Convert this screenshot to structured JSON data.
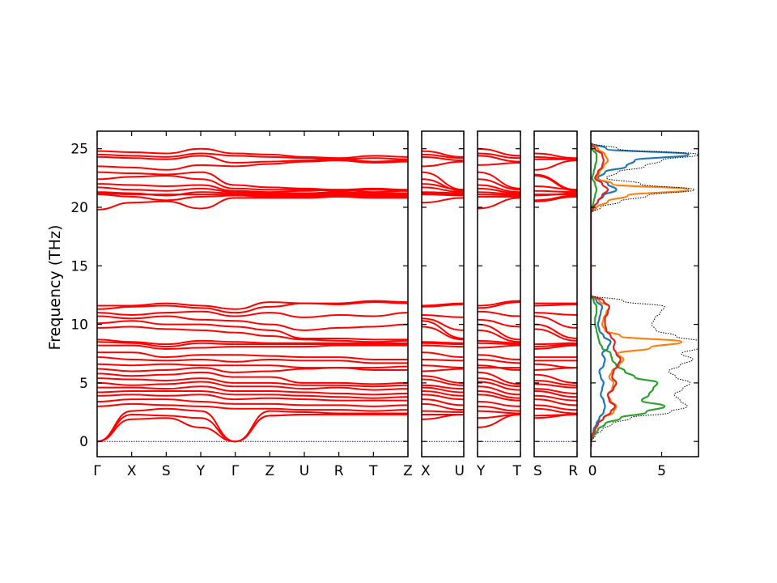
{
  "chart_data": {
    "type": "line",
    "ylabel": "Frequency (THz)",
    "ylim": [
      -1.3,
      26.5
    ],
    "yticks": [
      0,
      5,
      10,
      15,
      20,
      25
    ],
    "line_color": "#ff0000",
    "zero_line_color": "#0000cc",
    "panels": [
      {
        "labels": [
          "Γ",
          "X",
          "S",
          "Y",
          "Γ",
          "Z",
          "U",
          "R",
          "T",
          "Z"
        ],
        "splits": [
          4
        ],
        "bands": [
          [
            24.8,
            24.7,
            24.6,
            25.0,
            24.6,
            24.5,
            24.3,
            24.2,
            24.4,
            24.3
          ],
          [
            24.5,
            24.4,
            24.3,
            24.6,
            24.4,
            24.3,
            24.2,
            24.1,
            24.2,
            24.1
          ],
          [
            24.3,
            24.2,
            24.1,
            24.4,
            23.8,
            23.9,
            24.0,
            24.1,
            23.9,
            24.0
          ],
          [
            23.5,
            23.4,
            23.2,
            23.6,
            23.5,
            23.7,
            23.9,
            24.0,
            23.8,
            23.9
          ],
          [
            23.0,
            22.9,
            22.8,
            23.0,
            21.9,
            21.7,
            21.6,
            21.5,
            21.6,
            21.5
          ],
          [
            22.4,
            22.6,
            22.7,
            22.4,
            21.6,
            21.5,
            21.5,
            21.4,
            21.5,
            21.4
          ],
          [
            22.0,
            21.9,
            21.8,
            21.9,
            21.4,
            21.3,
            21.4,
            21.5,
            21.3,
            21.4
          ],
          [
            21.7,
            21.5,
            21.4,
            21.6,
            21.3,
            21.2,
            21.2,
            21.3,
            21.2,
            21.2
          ],
          [
            21.3,
            21.2,
            21.0,
            21.3,
            21.2,
            21.1,
            21.1,
            21.2,
            21.1,
            21.1
          ],
          [
            21.2,
            21.1,
            21.1,
            21.1,
            21.1,
            21.0,
            21.0,
            21.1,
            21.0,
            21.0
          ],
          [
            21.1,
            20.9,
            20.6,
            20.9,
            21.0,
            20.9,
            20.9,
            21.0,
            20.9,
            20.9
          ],
          [
            19.8,
            20.4,
            20.5,
            19.9,
            20.8,
            20.8,
            20.8,
            20.9,
            20.8,
            20.8
          ],
          [
            11.6,
            11.6,
            11.8,
            11.6,
            11.3,
            11.9,
            11.8,
            11.8,
            12.0,
            11.9
          ],
          [
            11.3,
            11.5,
            11.6,
            11.4,
            11.0,
            11.5,
            11.8,
            11.7,
            11.9,
            11.8
          ],
          [
            11.0,
            10.8,
            11.0,
            11.1,
            10.7,
            11.0,
            10.6,
            10.8,
            10.7,
            11.0
          ],
          [
            10.7,
            10.5,
            10.7,
            10.4,
            10.3,
            10.0,
            9.5,
            9.7,
            9.8,
            10.0
          ],
          [
            10.1,
            10.3,
            10.0,
            10.0,
            9.8,
            9.5,
            8.8,
            8.8,
            8.7,
            8.7
          ],
          [
            9.7,
            9.8,
            9.6,
            9.5,
            9.3,
            9.0,
            8.7,
            8.6,
            8.5,
            8.6
          ],
          [
            8.7,
            8.5,
            8.3,
            8.6,
            8.5,
            8.4,
            8.4,
            8.4,
            8.4,
            8.4
          ],
          [
            8.5,
            8.4,
            8.1,
            8.4,
            8.3,
            8.3,
            8.3,
            8.3,
            8.3,
            8.3
          ],
          [
            8.2,
            8.2,
            7.9,
            8.0,
            8.1,
            8.1,
            8.1,
            8.2,
            8.2,
            8.2
          ],
          [
            7.6,
            7.6,
            7.2,
            7.4,
            7.4,
            7.3,
            7.2,
            7.2,
            7.0,
            7.0
          ],
          [
            7.2,
            7.0,
            6.9,
            7.0,
            6.8,
            7.0,
            6.9,
            6.9,
            6.7,
            6.7
          ],
          [
            6.6,
            6.5,
            6.6,
            6.5,
            6.5,
            6.5,
            6.3,
            6.3,
            6.1,
            6.1
          ],
          [
            6.2,
            6.0,
            6.1,
            6.3,
            5.9,
            6.0,
            6.2,
            6.3,
            6.3,
            6.4
          ],
          [
            5.8,
            5.6,
            5.7,
            5.9,
            5.5,
            5.5,
            5.0,
            5.0,
            4.9,
            5.0
          ],
          [
            5.4,
            5.3,
            5.2,
            5.4,
            5.0,
            5.0,
            4.8,
            4.8,
            4.7,
            4.8
          ],
          [
            5.0,
            4.8,
            4.9,
            5.1,
            4.7,
            4.7,
            4.5,
            4.6,
            4.4,
            4.5
          ],
          [
            4.6,
            4.6,
            4.5,
            4.7,
            4.3,
            4.3,
            4.2,
            4.1,
            4.0,
            4.1
          ],
          [
            4.2,
            4.3,
            4.3,
            4.3,
            4.0,
            4.0,
            3.9,
            3.8,
            3.7,
            3.8
          ],
          [
            3.9,
            4.0,
            3.9,
            4.0,
            3.6,
            3.7,
            3.6,
            3.5,
            3.5,
            3.5
          ],
          [
            3.4,
            3.6,
            3.6,
            3.4,
            3.2,
            3.2,
            3.1,
            3.1,
            3.0,
            3.1
          ],
          [
            3.0,
            3.2,
            3.1,
            3.0,
            2.8,
            2.8,
            2.7,
            2.7,
            2.6,
            2.7
          ],
          [
            0.0,
            2.6,
            2.8,
            2.6,
            0.0,
            2.6,
            2.5,
            2.4,
            2.4,
            2.4
          ],
          [
            0.0,
            2.3,
            2.2,
            2.0,
            0.0,
            2.2,
            2.3,
            2.3,
            2.3,
            2.3
          ],
          [
            0.0,
            1.9,
            2.0,
            1.2,
            0.0,
            2.2,
            2.3,
            2.3,
            2.3,
            2.3
          ]
        ]
      },
      {
        "labels": [
          "X",
          "U"
        ],
        "splits": [],
        "bands": [
          [
            24.8,
            24.3
          ],
          [
            24.5,
            24.2
          ],
          [
            24.3,
            24.0
          ],
          [
            23.5,
            23.9
          ],
          [
            23.0,
            21.5
          ],
          [
            22.4,
            21.4
          ],
          [
            22.0,
            21.5
          ],
          [
            21.7,
            21.3
          ],
          [
            21.3,
            21.2
          ],
          [
            21.2,
            21.1
          ],
          [
            21.1,
            21.0
          ],
          [
            20.4,
            20.8
          ],
          [
            11.6,
            11.8
          ],
          [
            11.5,
            11.7
          ],
          [
            10.8,
            10.6
          ],
          [
            10.5,
            9.5
          ],
          [
            10.3,
            8.8
          ],
          [
            9.8,
            8.7
          ],
          [
            8.5,
            8.4
          ],
          [
            8.4,
            8.3
          ],
          [
            8.2,
            8.1
          ],
          [
            7.6,
            7.2
          ],
          [
            7.0,
            6.9
          ],
          [
            6.5,
            6.3
          ],
          [
            6.0,
            6.2
          ],
          [
            5.6,
            5.0
          ],
          [
            5.3,
            4.8
          ],
          [
            4.8,
            4.5
          ],
          [
            4.6,
            4.2
          ],
          [
            4.3,
            3.9
          ],
          [
            4.0,
            3.6
          ],
          [
            3.6,
            3.1
          ],
          [
            3.2,
            2.7
          ],
          [
            2.6,
            2.5
          ],
          [
            2.3,
            2.3
          ],
          [
            1.9,
            2.3
          ]
        ]
      },
      {
        "labels": [
          "Y",
          "T"
        ],
        "splits": [],
        "bands": [
          [
            25.0,
            24.4
          ],
          [
            24.6,
            24.2
          ],
          [
            24.4,
            23.9
          ],
          [
            23.6,
            23.8
          ],
          [
            23.0,
            21.6
          ],
          [
            22.4,
            21.5
          ],
          [
            21.9,
            21.3
          ],
          [
            21.6,
            21.2
          ],
          [
            21.3,
            21.1
          ],
          [
            21.1,
            21.0
          ],
          [
            20.9,
            20.9
          ],
          [
            19.9,
            20.8
          ],
          [
            11.6,
            12.0
          ],
          [
            11.4,
            11.9
          ],
          [
            11.1,
            10.7
          ],
          [
            10.4,
            9.8
          ],
          [
            10.0,
            8.7
          ],
          [
            9.5,
            8.5
          ],
          [
            8.6,
            8.4
          ],
          [
            8.4,
            8.3
          ],
          [
            8.0,
            8.2
          ],
          [
            7.4,
            7.0
          ],
          [
            7.0,
            6.7
          ],
          [
            6.5,
            6.1
          ],
          [
            6.3,
            6.3
          ],
          [
            5.9,
            4.9
          ],
          [
            5.4,
            4.7
          ],
          [
            5.1,
            4.4
          ],
          [
            4.7,
            4.0
          ],
          [
            4.3,
            3.7
          ],
          [
            4.0,
            3.5
          ],
          [
            3.4,
            3.0
          ],
          [
            3.0,
            2.6
          ],
          [
            2.6,
            2.4
          ],
          [
            2.0,
            2.3
          ],
          [
            1.2,
            2.3
          ]
        ]
      },
      {
        "labels": [
          "S",
          "R"
        ],
        "splits": [],
        "bands": [
          [
            24.6,
            24.2
          ],
          [
            24.3,
            24.1
          ],
          [
            24.1,
            24.1
          ],
          [
            23.2,
            24.0
          ],
          [
            22.8,
            21.5
          ],
          [
            22.7,
            21.4
          ],
          [
            21.8,
            21.5
          ],
          [
            21.4,
            21.3
          ],
          [
            21.0,
            21.2
          ],
          [
            21.1,
            21.1
          ],
          [
            20.6,
            21.0
          ],
          [
            20.5,
            20.9
          ],
          [
            11.8,
            11.8
          ],
          [
            11.6,
            11.7
          ],
          [
            11.0,
            10.8
          ],
          [
            10.7,
            9.7
          ],
          [
            10.0,
            8.8
          ],
          [
            9.6,
            8.6
          ],
          [
            8.3,
            8.4
          ],
          [
            8.1,
            8.3
          ],
          [
            7.9,
            8.2
          ],
          [
            7.2,
            7.2
          ],
          [
            6.9,
            6.9
          ],
          [
            6.6,
            6.3
          ],
          [
            6.1,
            6.3
          ],
          [
            5.7,
            5.0
          ],
          [
            5.2,
            4.8
          ],
          [
            4.9,
            4.6
          ],
          [
            4.5,
            4.1
          ],
          [
            4.3,
            3.8
          ],
          [
            3.9,
            3.5
          ],
          [
            3.6,
            3.1
          ],
          [
            3.1,
            2.7
          ],
          [
            2.8,
            2.4
          ],
          [
            2.2,
            2.3
          ],
          [
            2.0,
            2.3
          ]
        ]
      }
    ],
    "dos": {
      "xlim": [
        0,
        7.6
      ],
      "xticks": [
        0,
        5
      ],
      "freq": [
        -0.5,
        0.0,
        0.5,
        1.0,
        1.5,
        2.0,
        2.5,
        3.0,
        3.5,
        4.0,
        4.5,
        5.0,
        5.5,
        6.0,
        6.5,
        7.0,
        7.5,
        8.0,
        8.5,
        9.0,
        9.5,
        10.0,
        10.5,
        11.0,
        11.5,
        12.0,
        12.5,
        13.0,
        19.0,
        19.5,
        20.0,
        20.5,
        21.0,
        21.5,
        22.0,
        22.5,
        23.0,
        23.5,
        24.0,
        24.5,
        25.0,
        25.5
      ],
      "total": [
        0.0,
        0.0,
        0.3,
        0.8,
        1.5,
        2.8,
        5.6,
        6.8,
        6.3,
        5.9,
        6.5,
        7.0,
        6.0,
        5.5,
        6.3,
        7.2,
        6.4,
        7.6,
        7.8,
        6.0,
        4.6,
        4.3,
        4.5,
        4.9,
        5.2,
        2.3,
        0.0,
        0.0,
        0.0,
        0.0,
        0.7,
        2.1,
        4.0,
        7.3,
        3.5,
        1.1,
        1.9,
        3.8,
        5.0,
        7.6,
        1.9,
        0.0
      ],
      "series": [
        {
          "name": "",
          "color": "#1f77b4",
          "values": [
            0.0,
            0.0,
            0.1,
            0.2,
            0.4,
            0.6,
            0.9,
            1.0,
            0.9,
            0.7,
            0.8,
            0.9,
            0.7,
            0.6,
            0.9,
            1.0,
            0.8,
            1.2,
            1.4,
            0.9,
            0.6,
            0.5,
            0.6,
            0.7,
            0.8,
            0.4,
            0.0,
            0.0,
            0.0,
            0.0,
            0.2,
            0.5,
            0.9,
            1.8,
            1.2,
            0.5,
            1.0,
            2.5,
            3.1,
            6.9,
            1.1,
            0.0
          ]
        },
        {
          "name": "",
          "color": "#ff7f0e",
          "values": [
            0.0,
            0.0,
            0.1,
            0.3,
            0.5,
            0.9,
            1.6,
            1.8,
            1.4,
            1.2,
            1.5,
            1.6,
            1.3,
            1.5,
            2.0,
            2.3,
            1.9,
            4.2,
            6.4,
            2.1,
            1.0,
            0.8,
            0.9,
            1.1,
            1.3,
            0.6,
            0.0,
            0.0,
            0.0,
            0.0,
            0.4,
            1.2,
            2.6,
            6.9,
            1.5,
            0.4,
            0.6,
            0.9,
            1.2,
            1.0,
            0.5,
            0.0
          ]
        },
        {
          "name": "",
          "color": "#2ca02c",
          "values": [
            0.0,
            0.0,
            0.2,
            0.5,
            1.0,
            2.1,
            3.9,
            5.2,
            3.6,
            4.1,
            4.4,
            4.7,
            3.1,
            2.4,
            1.8,
            1.5,
            1.4,
            0.8,
            0.6,
            0.5,
            0.4,
            0.3,
            0.3,
            0.4,
            0.4,
            0.2,
            0.0,
            0.0,
            0.0,
            0.0,
            0.1,
            0.2,
            0.3,
            0.4,
            0.3,
            0.1,
            0.2,
            0.3,
            0.4,
            0.4,
            0.1,
            0.0
          ]
        },
        {
          "name": "",
          "color": "#d62728",
          "values": [
            0.0,
            0.0,
            0.1,
            0.3,
            0.5,
            0.9,
            1.4,
            1.7,
            1.3,
            1.2,
            1.6,
            1.8,
            1.5,
            1.6,
            1.9,
            2.1,
            1.8,
            1.6,
            1.7,
            1.4,
            1.1,
            1.0,
            1.0,
            1.2,
            1.3,
            0.9,
            0.0,
            0.0,
            0.0,
            0.0,
            0.2,
            0.5,
            0.8,
            1.2,
            0.8,
            0.3,
            0.5,
            0.8,
            0.9,
            0.8,
            0.3,
            0.0
          ]
        }
      ]
    }
  }
}
